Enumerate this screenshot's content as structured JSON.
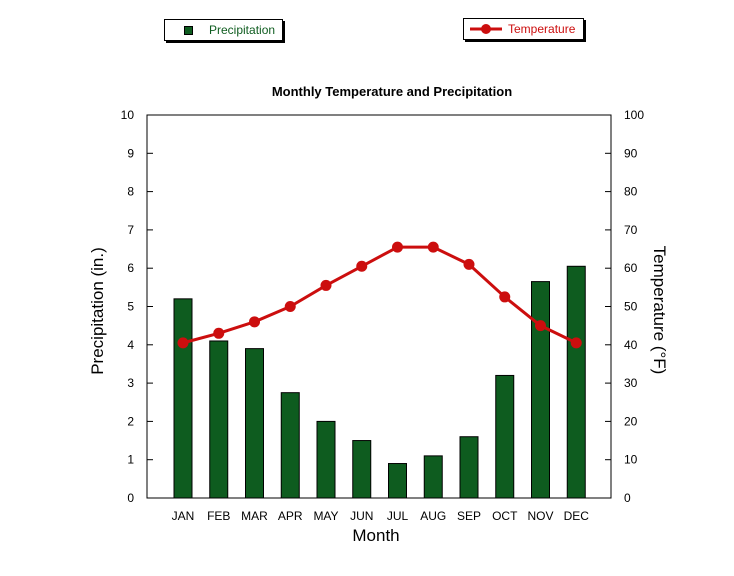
{
  "colors": {
    "precip": "#0e5c1f",
    "temp": "#cc0e0e"
  },
  "legend": {
    "precip_label": "Precipitation",
    "temp_label": "Temperature"
  },
  "chart_data": {
    "type": "bar",
    "title": "Monthly Temperature and Precipitation",
    "xlabel": "Month",
    "ylabel_left": "Precipitation (in.)",
    "ylabel_right": "Temperature (°F)",
    "categories": [
      "JAN",
      "FEB",
      "MAR",
      "APR",
      "MAY",
      "JUN",
      "JUL",
      "AUG",
      "SEP",
      "OCT",
      "NOV",
      "DEC"
    ],
    "ylim_left": [
      0,
      10
    ],
    "ylim_right": [
      0,
      100
    ],
    "yticks_left": [
      0,
      1,
      2,
      3,
      4,
      5,
      6,
      7,
      8,
      9,
      10
    ],
    "yticks_right": [
      0,
      10,
      20,
      30,
      40,
      50,
      60,
      70,
      80,
      90,
      100
    ],
    "grid": false,
    "legend_position": "top",
    "series": [
      {
        "name": "Precipitation",
        "type": "bar",
        "axis": "left",
        "values": [
          5.2,
          4.1,
          3.9,
          2.75,
          2.0,
          1.5,
          0.9,
          1.1,
          1.6,
          3.2,
          5.65,
          6.05
        ]
      },
      {
        "name": "Temperature",
        "type": "line",
        "axis": "right",
        "values": [
          40.5,
          43,
          46,
          50,
          55.5,
          60.5,
          65.5,
          65.5,
          61,
          52.5,
          45,
          40.5
        ]
      }
    ]
  }
}
